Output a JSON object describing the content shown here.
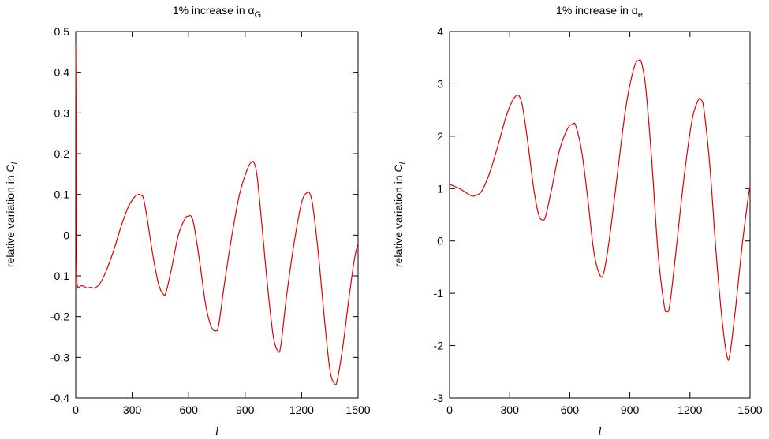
{
  "chart_data": [
    {
      "type": "line",
      "title": "1% increase in α",
      "title_sub": "G",
      "xlabel": "l",
      "ylabel": "relative variation in C",
      "ylabel_sub": "l",
      "xlim": [
        0,
        1500
      ],
      "ylim": [
        -0.4,
        0.5
      ],
      "xticks": [
        0,
        300,
        600,
        900,
        1200,
        1500
      ],
      "yticks": [
        -0.4,
        -0.3,
        -0.2,
        -0.1,
        0,
        0.1,
        0.2,
        0.3,
        0.4,
        0.5
      ],
      "grid": false,
      "line_color": "#e00000",
      "series": [
        {
          "x": [
            0,
            2,
            4,
            7,
            10,
            15,
            25,
            40,
            60,
            80,
            100,
            130,
            160,
            200,
            240,
            280,
            310,
            335,
            350,
            360,
            380,
            410,
            440,
            465,
            480,
            510,
            545,
            580,
            600,
            615,
            630,
            660,
            690,
            720,
            745,
            760,
            790,
            830,
            870,
            910,
            935,
            950,
            965,
            990,
            1020,
            1050,
            1075,
            1090,
            1120,
            1160,
            1200,
            1230,
            1245,
            1260,
            1290,
            1320,
            1350,
            1375,
            1390,
            1420,
            1450,
            1480,
            1500
          ],
          "y": [
            0.47,
            0.3,
            0.0,
            -0.12,
            -0.125,
            -0.13,
            -0.125,
            -0.125,
            -0.13,
            -0.128,
            -0.13,
            -0.118,
            -0.09,
            -0.04,
            0.02,
            0.07,
            0.092,
            0.1,
            0.097,
            0.09,
            0.04,
            -0.05,
            -0.12,
            -0.145,
            -0.14,
            -0.08,
            0.0,
            0.04,
            0.047,
            0.045,
            0.02,
            -0.07,
            -0.17,
            -0.225,
            -0.235,
            -0.22,
            -0.12,
            0.0,
            0.1,
            0.16,
            0.18,
            0.175,
            0.14,
            0.02,
            -0.13,
            -0.25,
            -0.285,
            -0.27,
            -0.15,
            -0.02,
            0.08,
            0.105,
            0.1,
            0.07,
            -0.05,
            -0.2,
            -0.33,
            -0.365,
            -0.355,
            -0.27,
            -0.16,
            -0.06,
            -0.02
          ]
        }
      ]
    },
    {
      "type": "line",
      "title": "1% increase in α",
      "title_sub": "e",
      "xlabel": "l",
      "ylabel": "relative variation in C",
      "ylabel_sub": "l",
      "xlim": [
        0,
        1500
      ],
      "ylim": [
        -3,
        4
      ],
      "xticks": [
        0,
        300,
        600,
        900,
        1200,
        1500
      ],
      "yticks": [
        -3,
        -2,
        -1,
        0,
        1,
        2,
        3,
        4
      ],
      "grid": false,
      "line_color": "#e00000",
      "series": [
        {
          "x": [
            0,
            20,
            50,
            80,
            110,
            130,
            160,
            200,
            240,
            280,
            310,
            335,
            350,
            365,
            390,
            420,
            445,
            465,
            480,
            510,
            550,
            590,
            615,
            630,
            660,
            690,
            720,
            750,
            770,
            800,
            840,
            880,
            920,
            945,
            960,
            980,
            1010,
            1040,
            1070,
            1085,
            1100,
            1130,
            1170,
            1210,
            1240,
            1255,
            1270,
            1300,
            1330,
            1360,
            1385,
            1400,
            1430,
            1460,
            1490,
            1500
          ],
          "y": [
            1.08,
            1.05,
            1.0,
            0.93,
            0.86,
            0.87,
            0.95,
            1.3,
            1.8,
            2.35,
            2.65,
            2.78,
            2.75,
            2.55,
            1.9,
            1.0,
            0.5,
            0.4,
            0.48,
            1.0,
            1.75,
            2.15,
            2.23,
            2.2,
            1.7,
            0.8,
            -0.2,
            -0.65,
            -0.6,
            0.1,
            1.35,
            2.55,
            3.3,
            3.45,
            3.38,
            2.9,
            1.5,
            -0.2,
            -1.2,
            -1.35,
            -1.2,
            -0.2,
            1.2,
            2.3,
            2.68,
            2.7,
            2.5,
            1.4,
            -0.2,
            -1.5,
            -2.2,
            -2.15,
            -1.2,
            -0.1,
            0.8,
            1.05
          ]
        }
      ]
    }
  ]
}
